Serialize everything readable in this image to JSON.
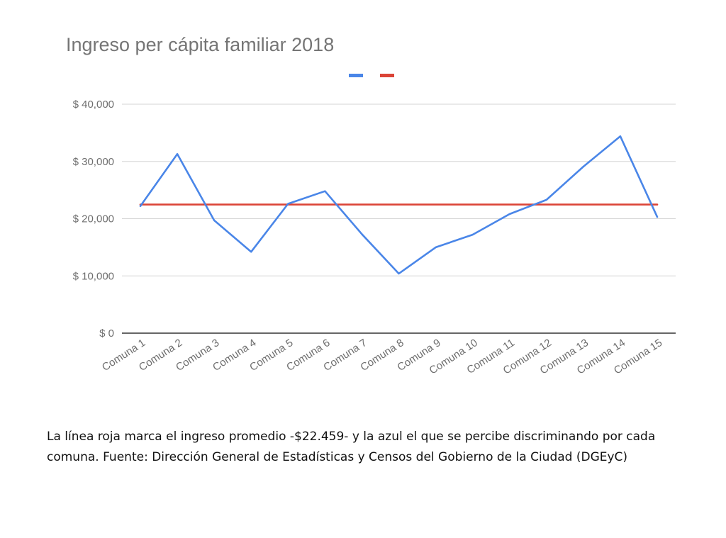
{
  "chart_data": {
    "type": "line",
    "title": "Ingreso per cápita familiar 2018",
    "categories": [
      "Comuna 1",
      "Comuna 2",
      "Comuna 3",
      "Comuna 4",
      "Comuna 5",
      "Comuna 6",
      "Comuna 7",
      "Comuna 8",
      "Comuna 9",
      "Comuna 10",
      "Comuna 11",
      "Comuna 12",
      "Comuna 13",
      "Comuna 14",
      "Comuna 15"
    ],
    "series": [
      {
        "color": "#4a86e8",
        "values": [
          22200,
          31300,
          19700,
          14200,
          22600,
          24800,
          17300,
          10400,
          15000,
          17200,
          20800,
          23300,
          29100,
          34400,
          20300
        ]
      },
      {
        "color": "#db4437",
        "values": [
          22459,
          22459,
          22459,
          22459,
          22459,
          22459,
          22459,
          22459,
          22459,
          22459,
          22459,
          22459,
          22459,
          22459,
          22459
        ]
      }
    ],
    "y_ticks": [
      "$ 0",
      "$ 10,000",
      "$ 20,000",
      "$ 30,000",
      "$ 40,000"
    ],
    "ylim": [
      0,
      40000
    ],
    "grid": true,
    "legend": "top-center",
    "xlabel": "",
    "ylabel": ""
  },
  "caption": "La línea roja marca el ingreso promedio -$22.459- y la azul el que se percibe discriminando por cada comuna. Fuente: Dirección General de Estadísticas y Censos del Gobierno de la Ciudad (DGEyC)"
}
